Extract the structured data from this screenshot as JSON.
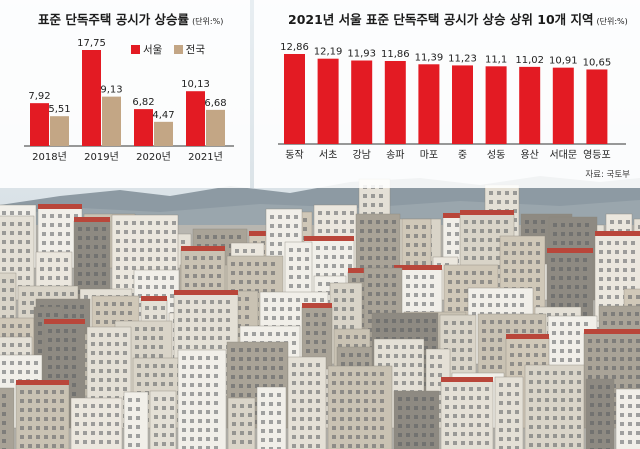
{
  "colors": {
    "seoul": "#e31b23",
    "national": "#c3a685",
    "top10": "#e31b23",
    "axis": "#333333"
  },
  "left_panel": {
    "title": "표준 단독주택 공시가 상승률",
    "unit": "(단위:%)",
    "legend": [
      "서울",
      "전국"
    ]
  },
  "right_panel": {
    "title": "2021년 서울 표준 단독주택 공시가 상승 상위 10개 지역",
    "unit": "(단위:%)",
    "source": "자료: 국토부"
  },
  "chart_data": [
    {
      "type": "bar",
      "title": "표준 단독주택 공시가 상승률",
      "unit": "%",
      "categories": [
        "2018년",
        "2019년",
        "2020년",
        "2021년"
      ],
      "series": [
        {
          "name": "서울",
          "values": [
            7.92,
            17.75,
            6.82,
            10.13
          ]
        },
        {
          "name": "전국",
          "values": [
            5.51,
            9.13,
            4.47,
            6.68
          ]
        }
      ],
      "value_labels": [
        [
          "7,92",
          "17,75",
          "6,82",
          "10,13"
        ],
        [
          "5,51",
          "9,13",
          "4,47",
          "6,68"
        ]
      ],
      "ylim": [
        0,
        17.75
      ],
      "legend_position": "top-right",
      "grid": false
    },
    {
      "type": "bar",
      "title": "2021년 서울 표준 단독주택 공시가 상승 상위 10개 지역",
      "unit": "%",
      "categories": [
        "동작",
        "서초",
        "강남",
        "송파",
        "마포",
        "중",
        "성동",
        "용산",
        "서대문",
        "영등포"
      ],
      "values": [
        12.86,
        12.19,
        11.93,
        11.86,
        11.39,
        11.23,
        11.1,
        11.02,
        10.91,
        10.65
      ],
      "value_labels": [
        "12,86",
        "12,19",
        "11,93",
        "11,86",
        "11,39",
        "11,23",
        "11,1",
        "11,02",
        "10,91",
        "10,65"
      ],
      "ylim": [
        0,
        12.86
      ],
      "grid": false
    }
  ]
}
